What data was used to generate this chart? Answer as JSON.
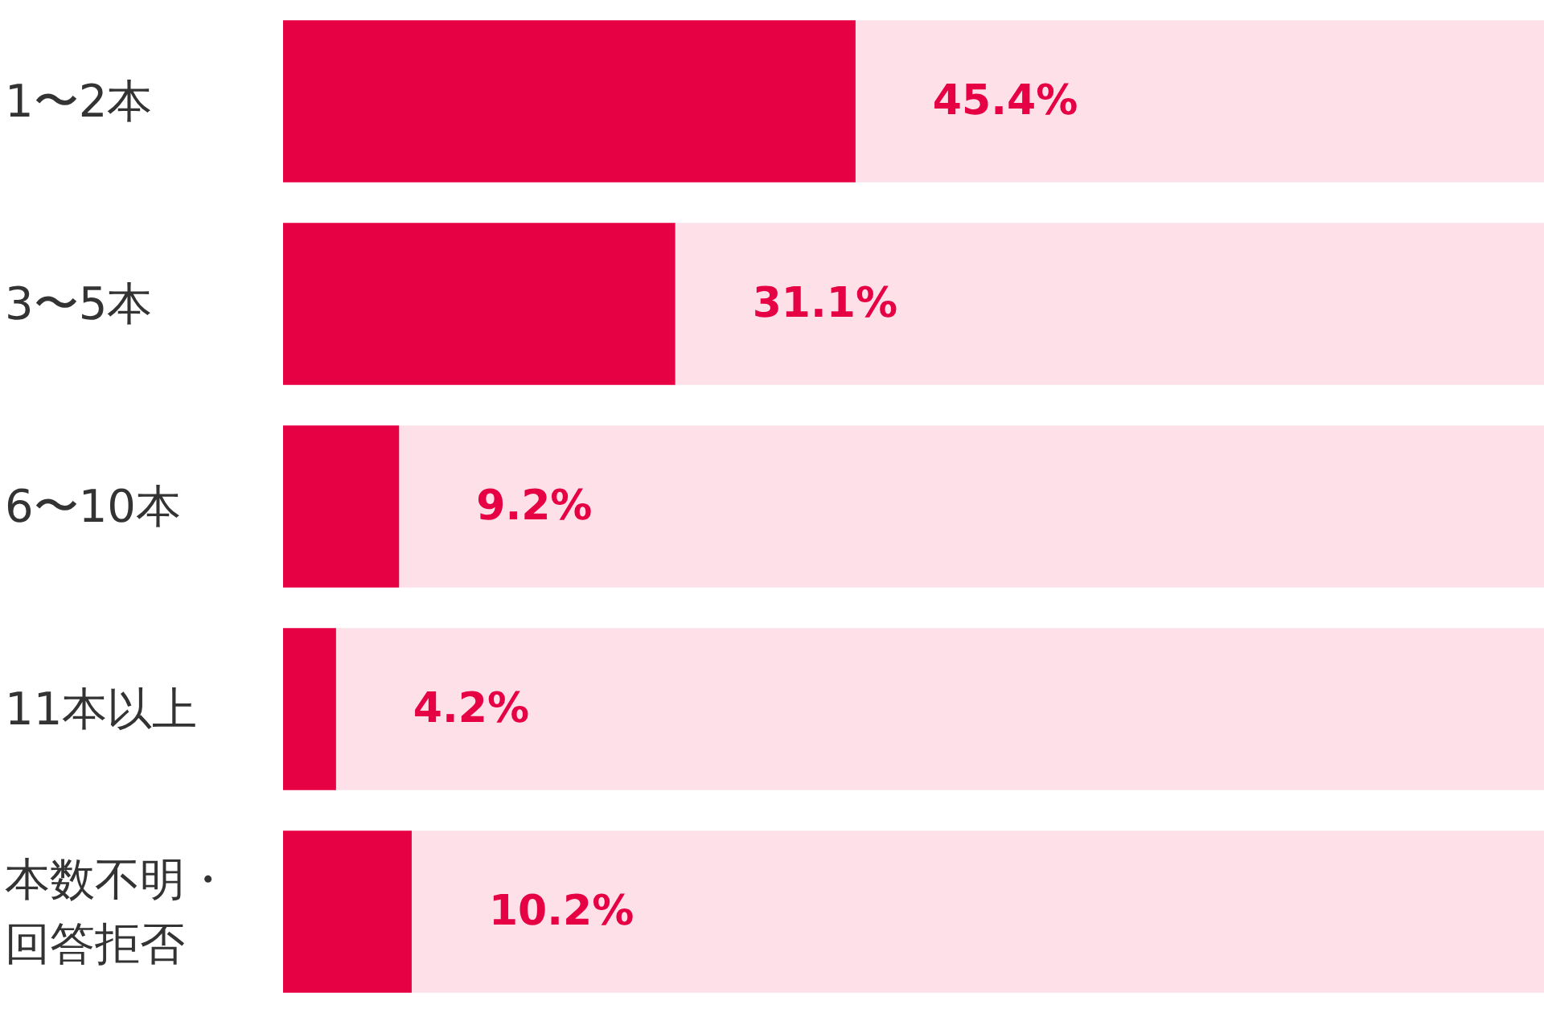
{
  "chart_data": {
    "type": "bar",
    "orientation": "horizontal",
    "categories": [
      "1〜2本",
      "3〜5本",
      "6〜10本",
      "11本以上",
      "本数不明・回答拒否"
    ],
    "values": [
      45.4,
      31.1,
      9.2,
      4.2,
      10.2
    ],
    "value_labels": [
      "45.4%",
      "31.1%",
      "9.2%",
      "4.2%",
      "10.2%"
    ],
    "color": "#e60044",
    "xlim": [
      0,
      100
    ],
    "tick_labels": "y"
  }
}
